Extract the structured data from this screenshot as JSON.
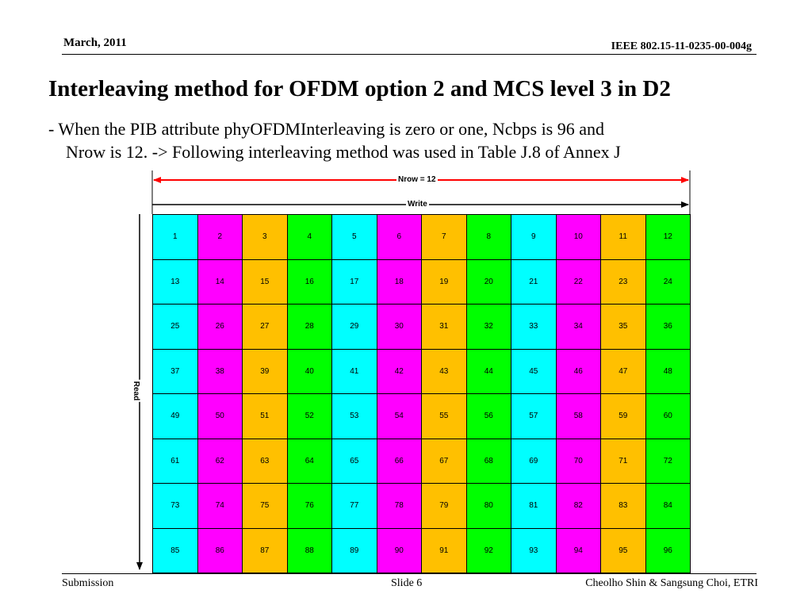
{
  "header": {
    "date": "March,  2011",
    "doc_id": "IEEE 802.15-11-0235-00-004g"
  },
  "title": "Interleaving method for OFDM option 2 and MCS level 3 in D2",
  "body": {
    "line1": "- When the PIB attribute phyOFDMInterleaving is zero or one, Ncbps is 96 and",
    "line2": "Nrow is 12. -> Following interleaving method was used in Table J.8 of Annex J"
  },
  "diagram": {
    "nrow_label": "Nrow = 12",
    "write_label": "Write",
    "read_label": "Read",
    "columns": 12,
    "rows": 8,
    "cells": [
      [
        "1",
        "2",
        "3",
        "4",
        "5",
        "6",
        "7",
        "8",
        "9",
        "10",
        "11",
        "12"
      ],
      [
        "13",
        "14",
        "15",
        "16",
        "17",
        "18",
        "19",
        "20",
        "21",
        "22",
        "23",
        "24"
      ],
      [
        "25",
        "26",
        "27",
        "28",
        "29",
        "30",
        "31",
        "32",
        "33",
        "34",
        "35",
        "36"
      ],
      [
        "37",
        "38",
        "39",
        "40",
        "41",
        "42",
        "43",
        "44",
        "45",
        "46",
        "47",
        "48"
      ],
      [
        "49",
        "50",
        "51",
        "52",
        "53",
        "54",
        "55",
        "56",
        "57",
        "58",
        "59",
        "60"
      ],
      [
        "61",
        "62",
        "63",
        "64",
        "65",
        "66",
        "67",
        "68",
        "69",
        "70",
        "71",
        "72"
      ],
      [
        "73",
        "74",
        "75",
        "76",
        "77",
        "78",
        "79",
        "80",
        "81",
        "82",
        "83",
        "84"
      ],
      [
        "85",
        "86",
        "87",
        "88",
        "89",
        "90",
        "91",
        "92",
        "93",
        "94",
        "95",
        "96"
      ]
    ],
    "column_colors": [
      "#00ffff",
      "#ff00ff",
      "#ffc000",
      "#00ff00",
      "#00ffff",
      "#ff00ff",
      "#ffc000",
      "#00ff00",
      "#00ffff",
      "#ff00ff",
      "#ffc000",
      "#00ff00"
    ],
    "arrow_color": "#ff0000"
  },
  "footer": {
    "left": "Submission",
    "center": "Slide 6",
    "right": "Cheolho Shin & Sangsung Choi, ETRI"
  }
}
